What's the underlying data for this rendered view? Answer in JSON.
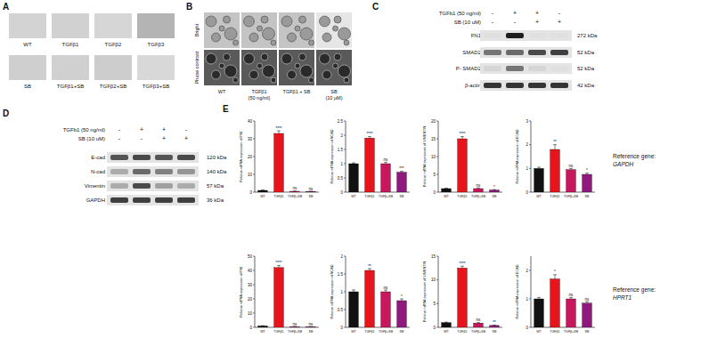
{
  "panels": {
    "A": {
      "label": "A",
      "rows": [
        [
          {
            "name": "WT",
            "color": "#d3d3d3"
          },
          {
            "name": "TGFβ1",
            "color": "#d1d1d1"
          },
          {
            "name": "TGFβ2",
            "color": "#d6d6d6"
          },
          {
            "name": "TGFβ3",
            "color": "#b4b4b4"
          }
        ],
        [
          {
            "name": "SB",
            "color": "#cfcfcf"
          },
          {
            "name": "TGFβ1+SB",
            "color": "#d0d0d0"
          },
          {
            "name": "TGFβ2+SB",
            "color": "#cdcdcd"
          },
          {
            "name": "TGFβ3+SB",
            "color": "#d8d8d8"
          }
        ]
      ]
    },
    "B": {
      "label": "B",
      "rows": [
        "Bright",
        "Phase contrast"
      ],
      "columns": [
        [
          "WT"
        ],
        [
          "TGFβ1",
          "(50 ng/ml)"
        ],
        [
          "TGFβ1 + SB"
        ],
        [
          "SB",
          "(10 μM)"
        ]
      ]
    },
    "C": {
      "label": "C",
      "treatments": [
        {
          "name": "TGFb1 (50 ng/ml)",
          "signs": [
            "-",
            "+",
            "+",
            "-"
          ]
        },
        {
          "name": "SB (10 uM)",
          "signs": [
            "-",
            "-",
            "+",
            "+"
          ]
        }
      ],
      "bands": [
        {
          "name": "FN1",
          "size": "272 kDa",
          "intensity": [
            0.05,
            0.95,
            0.05,
            0.05
          ]
        },
        {
          "name": "SMAD2",
          "size": "52 kDa",
          "intensity": [
            0.55,
            0.6,
            0.75,
            0.8
          ]
        },
        {
          "name": "P- SMAD2",
          "size": "52 kDa",
          "intensity": [
            0.1,
            0.55,
            0.1,
            0.05
          ]
        },
        {
          "name": "β-actin",
          "size": "42 kDa",
          "intensity": [
            0.85,
            0.85,
            0.85,
            0.85
          ]
        }
      ]
    },
    "D": {
      "label": "D",
      "treatments": [
        {
          "name": "TGFb1 (50 ng/ml)",
          "signs": [
            "-",
            "+",
            "+",
            "-"
          ]
        },
        {
          "name": "SB (10 uM)",
          "signs": [
            "-",
            "-",
            "+",
            "+"
          ]
        }
      ],
      "bands": [
        {
          "name": "E-cad",
          "size": "120 kDa",
          "intensity": [
            0.7,
            0.75,
            0.7,
            0.75
          ]
        },
        {
          "name": "N-cad",
          "size": "140 kDa",
          "intensity": [
            0.3,
            0.6,
            0.5,
            0.4
          ]
        },
        {
          "name": "Vimentin",
          "size": "57 kDa",
          "intensity": [
            0.3,
            0.75,
            0.35,
            0.3
          ]
        },
        {
          "name": "GAPDH",
          "size": "36 kDa",
          "intensity": [
            0.8,
            0.8,
            0.8,
            0.8
          ]
        }
      ]
    },
    "E": {
      "label": "E",
      "reference_genes": [
        {
          "prefix": "Reference gene:",
          "gene": "GAPDH"
        },
        {
          "prefix": "Reference gene:",
          "gene": "HPRT1"
        }
      ]
    }
  },
  "chart_data": [
    {
      "type": "bar",
      "y_label": "Relative mRNA expression of FN1",
      "categories": [
        "WT",
        "TGFβ1",
        "TGFβ+SB",
        "SB"
      ],
      "values": [
        1,
        33,
        0.5,
        0.4
      ],
      "errors": [
        0.2,
        1.5,
        0.1,
        0.1
      ],
      "significance": [
        null,
        "****",
        "ns",
        "ns"
      ],
      "colors": [
        "#111111",
        "#e8141c",
        "#c8175d",
        "#8e1a7e"
      ],
      "ylim": [
        0,
        40
      ],
      "yticks": [
        0,
        10,
        20,
        30,
        40
      ]
    },
    {
      "type": "bar",
      "y_label": "Relative mRNA expression of NCAD",
      "categories": [
        "WT",
        "TGFβ1",
        "TGFβ+SB",
        "SB"
      ],
      "values": [
        1,
        1.9,
        1.0,
        0.7
      ],
      "errors": [
        0.03,
        0.05,
        0.05,
        0.03
      ],
      "significance": [
        null,
        "****",
        "ns",
        "***"
      ],
      "colors": [
        "#111111",
        "#e8141c",
        "#c8175d",
        "#8e1a7e"
      ],
      "ylim": [
        0,
        2.5
      ],
      "yticks": [
        0,
        0.5,
        1,
        1.5,
        2,
        2.5
      ]
    },
    {
      "type": "bar",
      "y_label": "Relative mRNA expression of VIMENTIN",
      "categories": [
        "WT",
        "TGFβ1",
        "TGFβ+SB",
        "SB"
      ],
      "values": [
        1,
        15,
        1,
        0.6
      ],
      "errors": [
        0.1,
        0.6,
        0.2,
        0.1
      ],
      "significance": [
        null,
        "****",
        "ns",
        "*"
      ],
      "colors": [
        "#111111",
        "#e8141c",
        "#c8175d",
        "#8e1a7e"
      ],
      "ylim": [
        0,
        20
      ],
      "yticks": [
        0,
        5,
        10,
        15,
        20
      ]
    },
    {
      "type": "bar",
      "y_label": "Relative mRNA expression of ECAD",
      "categories": [
        "WT",
        "TGFβ1",
        "TGFβ+SB",
        "SB"
      ],
      "values": [
        1,
        1.8,
        0.95,
        0.75
      ],
      "errors": [
        0.05,
        0.2,
        0.05,
        0.05
      ],
      "significance": [
        null,
        "**",
        "ns",
        "*"
      ],
      "colors": [
        "#111111",
        "#e8141c",
        "#c8175d",
        "#8e1a7e"
      ],
      "ylim": [
        0,
        3
      ],
      "yticks": [
        0,
        1,
        2,
        3
      ]
    },
    {
      "type": "bar",
      "y_label": "Relative mRNA expression of FN1",
      "categories": [
        "WT",
        "TGFβ1",
        "TGFβ+SB",
        "SB"
      ],
      "values": [
        1,
        42,
        0.5,
        0.4
      ],
      "errors": [
        0.2,
        1.5,
        0.1,
        0.1
      ],
      "significance": [
        null,
        "****",
        "ns",
        "ns"
      ],
      "colors": [
        "#111111",
        "#e8141c",
        "#c8175d",
        "#8e1a7e"
      ],
      "ylim": [
        0,
        50
      ],
      "yticks": [
        0,
        10,
        20,
        30,
        40,
        50
      ]
    },
    {
      "type": "bar",
      "y_label": "Relative mRNA expression of NCAD",
      "categories": [
        "WT",
        "TGFβ1",
        "TGFβ+SB",
        "SB"
      ],
      "values": [
        1,
        1.6,
        1.0,
        0.75
      ],
      "errors": [
        0.05,
        0.05,
        0.05,
        0.05
      ],
      "significance": [
        null,
        "**",
        "ns",
        "*"
      ],
      "colors": [
        "#111111",
        "#e8141c",
        "#c8175d",
        "#8e1a7e"
      ],
      "ylim": [
        0,
        2
      ],
      "yticks": [
        0,
        0.5,
        1,
        1.5,
        2
      ]
    },
    {
      "type": "bar",
      "y_label": "Relative mRNA expression of VIMENTIN",
      "categories": [
        "WT",
        "TGFβ1",
        "TGFβ+SB",
        "SB"
      ],
      "values": [
        1,
        12.5,
        0.9,
        0.4
      ],
      "errors": [
        0.1,
        0.4,
        0.1,
        0.05
      ],
      "significance": [
        null,
        "****",
        "ns",
        "**"
      ],
      "colors": [
        "#111111",
        "#e8141c",
        "#c8175d",
        "#8e1a7e"
      ],
      "ylim": [
        0,
        15
      ],
      "yticks": [
        0,
        5,
        10,
        15
      ]
    },
    {
      "type": "bar",
      "y_label": "Relative mRNA expression of ECAD",
      "categories": [
        "WT",
        "TGFβ1",
        "TGFβ+SB",
        "SB"
      ],
      "values": [
        1,
        1.7,
        1.0,
        0.85
      ],
      "errors": [
        0.05,
        0.15,
        0.05,
        0.05
      ],
      "significance": [
        null,
        "*",
        "ns",
        "ns"
      ],
      "colors": [
        "#111111",
        "#e8141c",
        "#c8175d",
        "#8e1a7e"
      ],
      "ylim": [
        0,
        2.5
      ],
      "yticks": [
        0,
        1,
        2
      ]
    }
  ]
}
